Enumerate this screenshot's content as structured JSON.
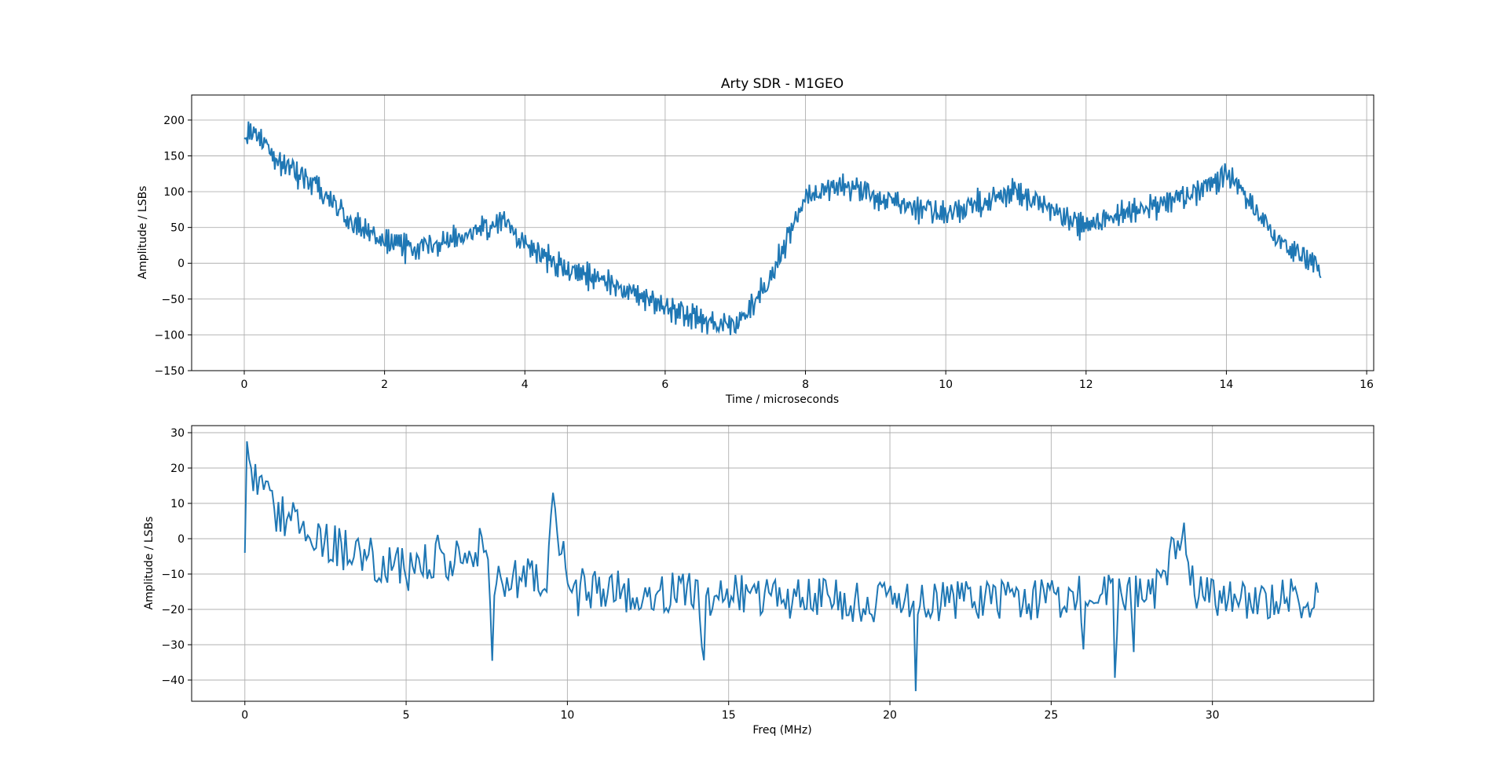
{
  "chart_data": [
    {
      "type": "line",
      "title": "Arty SDR - M1GEO",
      "xlabel": "Time / microseconds",
      "ylabel": "Amplitude / LSBs",
      "xlim": [
        -0.75,
        16.1
      ],
      "ylim": [
        -150,
        235
      ],
      "xticks": [
        0,
        2,
        4,
        6,
        8,
        10,
        12,
        14,
        16
      ],
      "yticks": [
        -150,
        -100,
        -50,
        0,
        50,
        100,
        150,
        200
      ],
      "xtick_labels": [
        "0",
        "2",
        "4",
        "6",
        "8",
        "10",
        "12",
        "14",
        "16"
      ],
      "ytick_labels": [
        "−150",
        "−100",
        "−50",
        "0",
        "50",
        "100",
        "150",
        "200"
      ],
      "grid": true,
      "color": "#1f77b4",
      "sample_step": 0.015,
      "noise": 27,
      "series": [
        {
          "envelope_x": [
            0,
            0.2,
            0.5,
            1.0,
            1.5,
            2.0,
            2.5,
            3.0,
            3.5,
            3.7,
            4.0,
            4.5,
            5.0,
            5.5,
            6.0,
            6.5,
            7.0,
            7.5,
            8.0,
            8.5,
            9.0,
            9.5,
            10.0,
            10.5,
            11.0,
            11.5,
            12.0,
            12.5,
            13.0,
            13.5,
            14.0,
            14.3,
            14.7,
            15.0,
            15.35
          ],
          "envelope_y": [
            175,
            180,
            140,
            110,
            60,
            30,
            20,
            35,
            50,
            60,
            25,
            -5,
            -20,
            -40,
            -60,
            -80,
            -90,
            -20,
            90,
            110,
            95,
            80,
            70,
            85,
            100,
            75,
            50,
            70,
            80,
            95,
            125,
            90,
            35,
            15,
            -10
          ]
        }
      ]
    },
    {
      "type": "line",
      "title": "",
      "xlabel": "Freq (MHz)",
      "ylabel": "Amplitude / LSBs",
      "xlim": [
        -1.65,
        35.0
      ],
      "ylim": [
        -46,
        32
      ],
      "xticks": [
        0,
        5,
        10,
        15,
        20,
        25,
        30
      ],
      "yticks": [
        -40,
        -30,
        -20,
        -10,
        0,
        10,
        20,
        30
      ],
      "xtick_labels": [
        "0",
        "5",
        "10",
        "15",
        "20",
        "25",
        "30"
      ],
      "ytick_labels": [
        "−40",
        "−30",
        "−20",
        "−10",
        "0",
        "10",
        "20",
        "30"
      ],
      "grid": true,
      "color": "#1f77b4",
      "sample_step": 0.065,
      "noise": 6,
      "series": [
        {
          "envelope_x": [
            0,
            0.05,
            0.3,
            1.0,
            2.0,
            3.0,
            4.0,
            5.0,
            6.0,
            7.0,
            8.0,
            9.0,
            10.0,
            12.0,
            15.0,
            20.0,
            25.0,
            28.0,
            30.0,
            33.3
          ],
          "envelope_y": [
            -4,
            27,
            18,
            7,
            2,
            -3,
            -6,
            -9,
            -6,
            -6,
            -11,
            -11,
            -13,
            -15,
            -16,
            -18,
            -17,
            -14,
            -17,
            -17
          ],
          "peaks": [
            [
              9.55,
              24,
              0.12
            ],
            [
              29.0,
              18,
              0.35
            ],
            [
              7.3,
              9,
              0.08
            ],
            [
              6.05,
              8,
              0.1
            ],
            [
              9.8,
              12,
              0.1
            ]
          ],
          "dips": [
            [
              7.65,
              -22,
              0.06
            ],
            [
              14.2,
              -20,
              0.06
            ],
            [
              20.8,
              -30,
              0.05
            ],
            [
              27.0,
              -24,
              0.05
            ],
            [
              10.35,
              -13,
              0.05
            ],
            [
              27.55,
              -18,
              0.05
            ],
            [
              26.0,
              -16,
              0.05
            ]
          ]
        }
      ]
    }
  ]
}
